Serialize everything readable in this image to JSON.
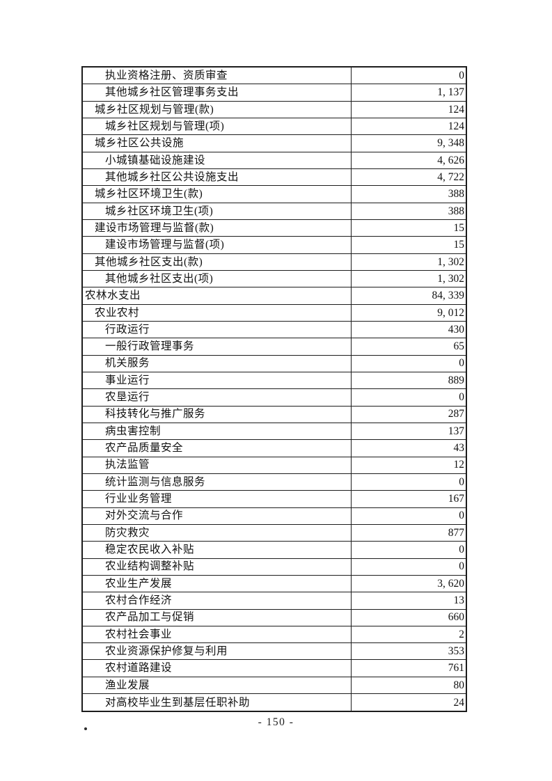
{
  "page": {
    "number_label": "- 150 -"
  },
  "table": {
    "rows": [
      {
        "label": "执业资格注册、资质审查",
        "value": "0",
        "indent": 2
      },
      {
        "label": "其他城乡社区管理事务支出",
        "value": "1, 137",
        "indent": 2
      },
      {
        "label": "城乡社区规划与管理(款)",
        "value": "124",
        "indent": 1
      },
      {
        "label": "城乡社区规划与管理(项)",
        "value": "124",
        "indent": 2
      },
      {
        "label": "城乡社区公共设施",
        "value": "9, 348",
        "indent": 1
      },
      {
        "label": "小城镇基础设施建设",
        "value": "4, 626",
        "indent": 2
      },
      {
        "label": "其他城乡社区公共设施支出",
        "value": "4, 722",
        "indent": 2
      },
      {
        "label": "城乡社区环境卫生(款)",
        "value": "388",
        "indent": 1
      },
      {
        "label": "城乡社区环境卫生(项)",
        "value": "388",
        "indent": 2
      },
      {
        "label": "建设市场管理与监督(款)",
        "value": "15",
        "indent": 1
      },
      {
        "label": "建设市场管理与监督(项)",
        "value": "15",
        "indent": 2
      },
      {
        "label": "其他城乡社区支出(款)",
        "value": "1, 302",
        "indent": 1
      },
      {
        "label": "其他城乡社区支出(项)",
        "value": "1, 302",
        "indent": 2
      },
      {
        "label": "农林水支出",
        "value": "84, 339",
        "indent": 0
      },
      {
        "label": "农业农村",
        "value": "9, 012",
        "indent": 1
      },
      {
        "label": "行政运行",
        "value": "430",
        "indent": 2
      },
      {
        "label": "一般行政管理事务",
        "value": "65",
        "indent": 2
      },
      {
        "label": "机关服务",
        "value": "0",
        "indent": 2
      },
      {
        "label": "事业运行",
        "value": "889",
        "indent": 2
      },
      {
        "label": "农垦运行",
        "value": "0",
        "indent": 2
      },
      {
        "label": "科技转化与推广服务",
        "value": "287",
        "indent": 2
      },
      {
        "label": "病虫害控制",
        "value": "137",
        "indent": 2
      },
      {
        "label": "农产品质量安全",
        "value": "43",
        "indent": 2
      },
      {
        "label": "执法监管",
        "value": "12",
        "indent": 2
      },
      {
        "label": "统计监测与信息服务",
        "value": "0",
        "indent": 2
      },
      {
        "label": "行业业务管理",
        "value": "167",
        "indent": 2
      },
      {
        "label": "对外交流与合作",
        "value": "0",
        "indent": 2
      },
      {
        "label": "防灾救灾",
        "value": "877",
        "indent": 2
      },
      {
        "label": "稳定农民收入补贴",
        "value": "0",
        "indent": 2
      },
      {
        "label": "农业结构调整补贴",
        "value": "0",
        "indent": 2
      },
      {
        "label": "农业生产发展",
        "value": "3, 620",
        "indent": 2
      },
      {
        "label": "农村合作经济",
        "value": "13",
        "indent": 2
      },
      {
        "label": "农产品加工与促销",
        "value": "660",
        "indent": 2
      },
      {
        "label": "农村社会事业",
        "value": "2",
        "indent": 2
      },
      {
        "label": "农业资源保护修复与利用",
        "value": "353",
        "indent": 2
      },
      {
        "label": "农村道路建设",
        "value": "761",
        "indent": 2
      },
      {
        "label": "渔业发展",
        "value": "80",
        "indent": 2
      },
      {
        "label": "对高校毕业生到基层任职补助",
        "value": "24",
        "indent": 2
      }
    ]
  }
}
